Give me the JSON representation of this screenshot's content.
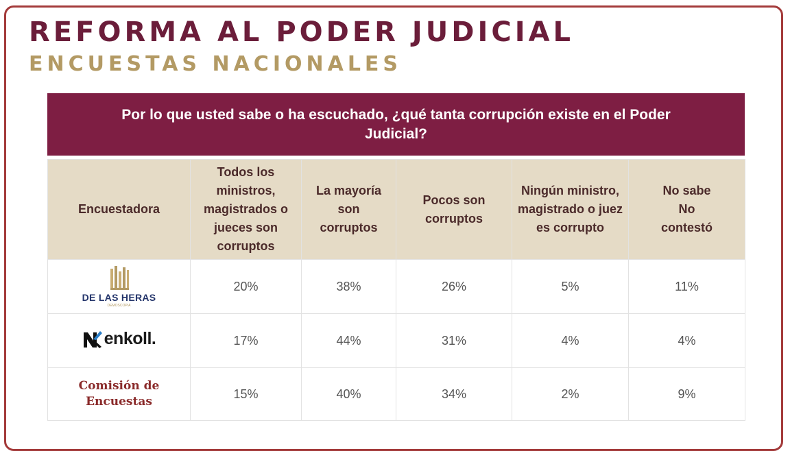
{
  "header": {
    "title": "REFORMA AL PODER JUDICIAL",
    "subtitle": "ENCUESTAS NACIONALES"
  },
  "colors": {
    "title": "#6b1d3a",
    "subtitle": "#b39a64",
    "question_bg": "#7e1e43",
    "header_bg": "#e5dbc6",
    "frame_border": "#a33a3a"
  },
  "chart_data": {
    "type": "table",
    "title": "Por lo que usted sabe o ha escuchado, ¿qué tanta corrupción existe en el Poder Judicial?",
    "columns": [
      "Encuestadora",
      "Todos los ministros, magistrados o jueces son corruptos",
      "La mayoría son corruptos",
      "Pocos son corruptos",
      "Ningún ministro, magistrado o juez es corrupto",
      "No sabe No contestó"
    ],
    "rows": [
      {
        "pollster": "DE LAS HERAS",
        "values": [
          "20%",
          "38%",
          "26%",
          "5%",
          "11%"
        ]
      },
      {
        "pollster": "enkoll.",
        "values": [
          "17%",
          "44%",
          "31%",
          "4%",
          "4%"
        ]
      },
      {
        "pollster": "Comisión de Encuestas",
        "values": [
          "15%",
          "40%",
          "34%",
          "2%",
          "9%"
        ]
      }
    ]
  },
  "logos": {
    "heras": {
      "icon": "building-columns-icon",
      "text": "DE LAS HERAS",
      "small": "DEMOSCOPIA"
    },
    "enkoll": {
      "icon": "nk-mark-icon",
      "text": "enkoll."
    },
    "comision": {
      "line1": "Comisión de",
      "line2": "Encuestas"
    }
  }
}
